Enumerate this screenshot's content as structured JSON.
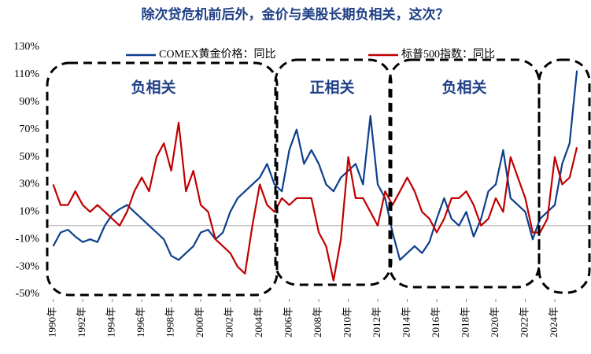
{
  "chart_data": {
    "type": "line",
    "title": "除次贷危机前后外，金价与美股长期负相关，这次？",
    "x": [
      1990,
      1990.5,
      1991,
      1991.5,
      1992,
      1992.5,
      1993,
      1993.5,
      1994,
      1994.5,
      1995,
      1995.5,
      1996,
      1996.5,
      1997,
      1997.5,
      1998,
      1998.5,
      1999,
      1999.5,
      2000,
      2000.5,
      2001,
      2001.5,
      2002,
      2002.5,
      2003,
      2003.5,
      2004,
      2004.5,
      2005,
      2005.5,
      2006,
      2006.5,
      2007,
      2007.5,
      2008,
      2008.5,
      2009,
      2009.5,
      2010,
      2010.5,
      2011,
      2011.5,
      2012,
      2012.5,
      2013,
      2013.5,
      2014,
      2014.5,
      2015,
      2015.5,
      2016,
      2016.5,
      2017,
      2017.5,
      2018,
      2018.5,
      2019,
      2019.5,
      2020,
      2020.5,
      2021,
      2021.5,
      2022,
      2022.5,
      2023,
      2023.5,
      2024,
      2024.5,
      2025,
      2025.5
    ],
    "series": [
      {
        "name": "COMEX黄金价格：同比",
        "color": "#0e3f8c",
        "values": [
          -15,
          -5,
          -3,
          -8,
          -12,
          -10,
          -12,
          0,
          8,
          12,
          15,
          10,
          5,
          0,
          -5,
          -10,
          -22,
          -25,
          -20,
          -15,
          -5,
          -3,
          -10,
          -5,
          10,
          20,
          25,
          30,
          35,
          45,
          30,
          25,
          55,
          70,
          45,
          55,
          45,
          30,
          25,
          35,
          40,
          45,
          30,
          80,
          30,
          20,
          -5,
          -25,
          -20,
          -15,
          -20,
          -12,
          5,
          20,
          5,
          0,
          10,
          -8,
          5,
          25,
          30,
          55,
          20,
          15,
          10,
          -10,
          5,
          10,
          15,
          45,
          60,
          113
        ]
      },
      {
        "name": "标普500指数：同比",
        "color": "#c00000",
        "values": [
          30,
          15,
          15,
          25,
          15,
          10,
          15,
          10,
          5,
          0,
          10,
          25,
          35,
          25,
          50,
          60,
          40,
          75,
          25,
          40,
          15,
          10,
          -10,
          -15,
          -20,
          -30,
          -35,
          0,
          30,
          15,
          10,
          20,
          15,
          20,
          20,
          20,
          -5,
          -15,
          -40,
          -10,
          50,
          20,
          20,
          10,
          0,
          25,
          15,
          25,
          35,
          25,
          10,
          5,
          -5,
          5,
          20,
          20,
          25,
          15,
          0,
          5,
          20,
          10,
          50,
          35,
          20,
          -5,
          -5,
          5,
          50,
          30,
          35,
          57
        ]
      }
    ],
    "xlim": [
      1989.7,
      2026.4
    ],
    "xticks": [
      {
        "value": 1990,
        "label": "1990年"
      },
      {
        "value": 1992,
        "label": "1992年"
      },
      {
        "value": 1994,
        "label": "1994年"
      },
      {
        "value": 1996,
        "label": "1996年"
      },
      {
        "value": 1998,
        "label": "1998年"
      },
      {
        "value": 2000,
        "label": "2000年"
      },
      {
        "value": 2002,
        "label": "2002年"
      },
      {
        "value": 2004,
        "label": "2004年"
      },
      {
        "value": 2006,
        "label": "2006年"
      },
      {
        "value": 2008,
        "label": "2008年"
      },
      {
        "value": 2010,
        "label": "2010年"
      },
      {
        "value": 2012,
        "label": "2012年"
      },
      {
        "value": 2014,
        "label": "2014年"
      },
      {
        "value": 2016,
        "label": "2016年"
      },
      {
        "value": 2018,
        "label": "2018年"
      },
      {
        "value": 2020,
        "label": "2020年"
      },
      {
        "value": 2022,
        "label": "2022年"
      },
      {
        "value": 2024,
        "label": "2024年"
      }
    ],
    "ylim": [
      -50,
      130
    ],
    "yticks": [
      {
        "value": 130,
        "label": "130%"
      },
      {
        "value": 110,
        "label": "110%"
      },
      {
        "value": 90,
        "label": "90%"
      },
      {
        "value": 70,
        "label": "70%"
      },
      {
        "value": 50,
        "label": "50%"
      },
      {
        "value": 30,
        "label": "30%"
      },
      {
        "value": 10,
        "label": "10%"
      },
      {
        "value": -10,
        "label": "-10%"
      },
      {
        "value": -30,
        "label": "-30%"
      },
      {
        "value": -50,
        "label": "-50%"
      }
    ],
    "annotations": [
      "负相关",
      "正相关",
      "负相关"
    ]
  }
}
